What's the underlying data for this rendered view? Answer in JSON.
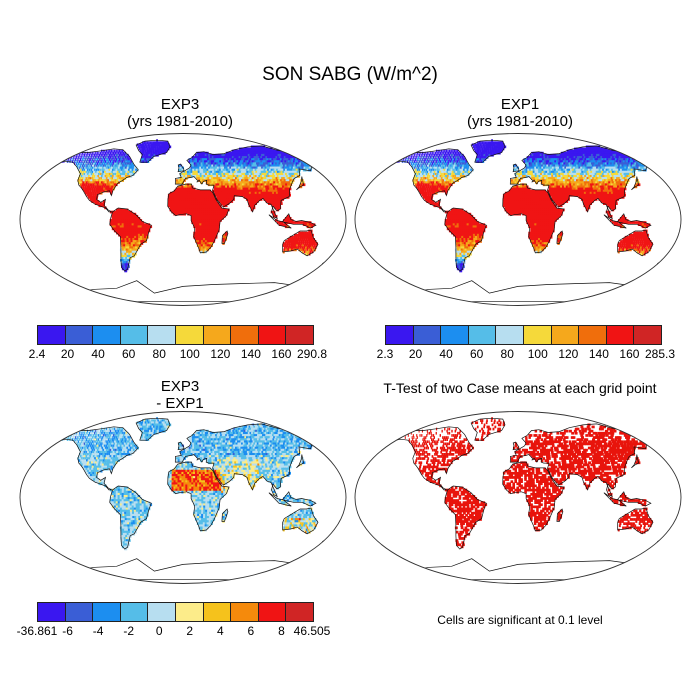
{
  "title": "SON SABG (W/m^2)",
  "panels": [
    {
      "id": "exp3",
      "title_line1": "EXP3",
      "title_line2": "(yrs 1981-2010)",
      "colorbar": {
        "colors": [
          "#3a17f0",
          "#3a5ed6",
          "#1c8ef0",
          "#55bde8",
          "#b7def0",
          "#f5d93a",
          "#f5a81c",
          "#f06e0c",
          "#f01414",
          "#d02525"
        ],
        "labels": [
          "2.4",
          "20",
          "40",
          "60",
          "80",
          "100",
          "120",
          "140",
          "160",
          "290.8"
        ]
      }
    },
    {
      "id": "exp1",
      "title_line1": "EXP1",
      "title_line2": "(yrs 1981-2010)",
      "colorbar": {
        "colors": [
          "#3a17f0",
          "#3a5ed6",
          "#1c8ef0",
          "#55bde8",
          "#b7def0",
          "#f5d93a",
          "#f5a81c",
          "#f06e0c",
          "#f01414",
          "#d02525"
        ],
        "labels": [
          "2.3",
          "20",
          "40",
          "60",
          "80",
          "100",
          "120",
          "140",
          "160",
          "285.3"
        ]
      }
    },
    {
      "id": "diff",
      "title_line1": "EXP3",
      "title_line2": "- EXP1",
      "colorbar": {
        "colors": [
          "#3a17f0",
          "#3a5ed6",
          "#1c8ef0",
          "#55bde8",
          "#b7def0",
          "#fcec8a",
          "#f5c21c",
          "#f58a0c",
          "#f01414",
          "#d02525"
        ],
        "labels": [
          "-36.861",
          "-6",
          "-4",
          "-2",
          "0",
          "2",
          "4",
          "6",
          "8",
          "46.505"
        ]
      }
    },
    {
      "id": "ttest",
      "title": "T-Test of two Case means at each grid point",
      "note": "Cells are significant at 0.1 level",
      "color": "#e8140c"
    }
  ]
}
